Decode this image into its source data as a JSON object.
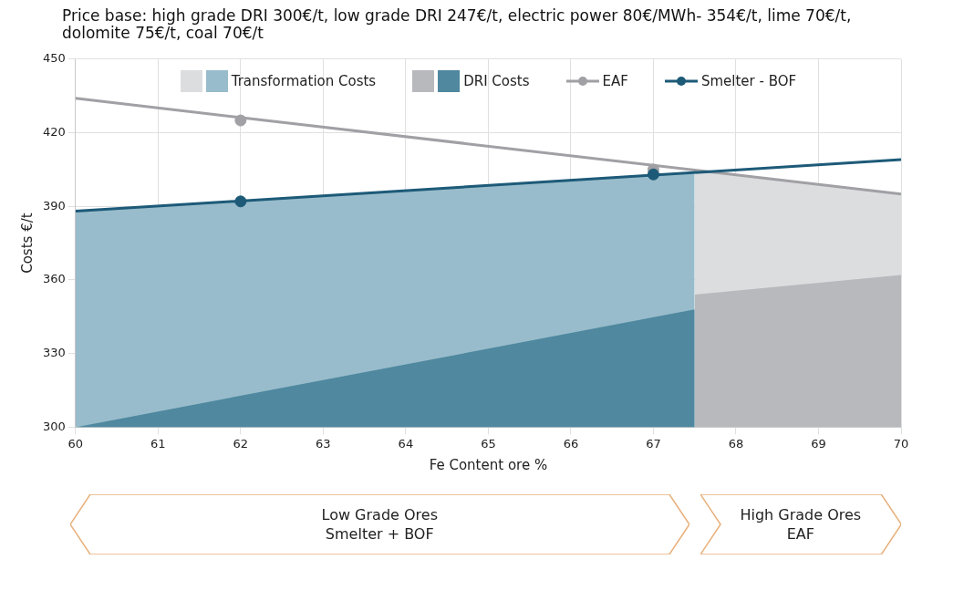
{
  "chart_data": {
    "type": "area",
    "title": "Price base: high grade DRI 300€/t, low grade DRI 247€/t, electric power  80€/MWh- 354€/t, lime 70€/t, dolomite 75€/t, coal 70€/t",
    "xlabel": "Fe Content ore %",
    "ylabel": "Costs €/t",
    "xlim": [
      60,
      70
    ],
    "xticks": [
      60,
      61,
      62,
      63,
      64,
      65,
      66,
      67,
      68,
      69,
      70
    ],
    "ylim": [
      300,
      450
    ],
    "yticks": [
      300,
      330,
      360,
      390,
      420,
      450
    ],
    "grid": true,
    "legend": "top",
    "series": [
      {
        "type": "area",
        "color": "#dcdddf",
        "x": [
          67.5,
          70
        ],
        "values": [
          405,
          395
        ]
      },
      {
        "name": "Transformation Costs",
        "type": "area",
        "color": "#98bccb",
        "x": [
          60,
          67.5
        ],
        "values": [
          388,
          404
        ]
      },
      {
        "type": "area",
        "color": "#b8b9bd",
        "x": [
          67.5,
          70
        ],
        "values": [
          354,
          362
        ]
      },
      {
        "name": "DRI Costs",
        "type": "area",
        "color": "#4f889f",
        "x": [
          60,
          67.5
        ],
        "values": [
          300,
          348
        ]
      },
      {
        "name": "EAF",
        "type": "line",
        "color": "#a0a0a5",
        "x": [
          60,
          70
        ],
        "values": [
          434,
          395
        ]
      },
      {
        "name": "Smelter - BOF",
        "type": "line",
        "color": "#1d5a78",
        "x": [
          60,
          70
        ],
        "values": [
          388,
          409
        ]
      },
      {
        "type": "scatter",
        "color": "#a0a0a5",
        "marker": "circle",
        "x": [
          62,
          67
        ],
        "values": [
          425,
          405
        ]
      },
      {
        "type": "scatter",
        "color": "#1d5a78",
        "marker": "circle",
        "x": [
          62,
          67
        ],
        "values": [
          392,
          403
        ]
      }
    ],
    "annotations": [
      "Low Grade Ores",
      "Smelter + BOF",
      "High Grade Ores",
      "EAF"
    ]
  }
}
